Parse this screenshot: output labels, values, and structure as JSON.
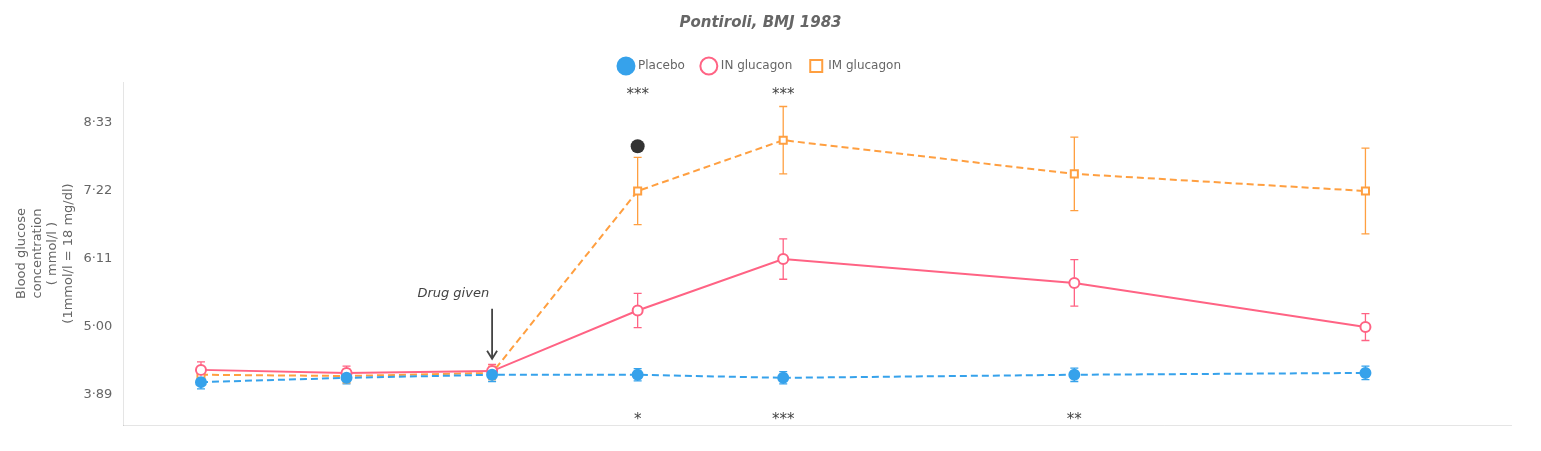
{
  "chart_data": {
    "type": "line",
    "title": "Pontiroli, BMJ 1983",
    "ylabel": [
      "Blood glucose",
      "concentration",
      "( mmol/l )",
      "(1mmol/l = 18 mg/dl)"
    ],
    "x": [
      -30,
      -15,
      0,
      15,
      30,
      60,
      90
    ],
    "series": [
      {
        "name": "Placebo",
        "values": [
          4.1,
          4.17,
          4.22,
          4.22,
          4.17,
          4.22,
          4.25
        ],
        "yerr": [
          0.11,
          0.1,
          0.11,
          0.1,
          0.1,
          0.11,
          0.11
        ],
        "marker": "filled_circle",
        "line_style": "dashed"
      },
      {
        "name": "IN glucagon",
        "values": [
          4.3,
          4.25,
          4.28,
          5.27,
          6.11,
          5.72,
          5.0
        ],
        "yerr": [
          0.13,
          0.11,
          0.11,
          0.28,
          0.33,
          0.38,
          0.22
        ],
        "marker": "open_circle",
        "line_style": "solid"
      },
      {
        "name": "IM glucagon",
        "values": [
          4.22,
          4.2,
          4.25,
          7.22,
          8.05,
          7.5,
          7.22
        ],
        "yerr": [
          0.13,
          0.11,
          0.11,
          0.55,
          0.55,
          0.6,
          0.7
        ],
        "marker": "open_square",
        "line_style": "dashed"
      }
    ],
    "xlim": [
      -38,
      105
    ],
    "ylim": [
      3.4,
      9.0
    ],
    "yticks": [
      {
        "value": 3.89,
        "label": "3·89"
      },
      {
        "value": 5.0,
        "label": "5·00"
      },
      {
        "value": 6.11,
        "label": "6·11"
      },
      {
        "value": 7.22,
        "label": "7·22"
      },
      {
        "value": 8.33,
        "label": "8·33"
      }
    ],
    "grid": false,
    "legend": "top",
    "tick_labels": "y",
    "annotations": [
      {
        "x": 15,
        "y": 7.95,
        "marker": "filled_circle"
      },
      {
        "text": "***",
        "x": 15,
        "y": 8.78
      },
      {
        "text": "***",
        "x": 30,
        "y": 8.78
      },
      {
        "text": "*",
        "x": 15,
        "y": 3.48
      },
      {
        "text": "***",
        "x": 30,
        "y": 3.48
      },
      {
        "text": "**",
        "x": 60,
        "y": 3.48
      },
      {
        "text": "Drug given",
        "x": -4,
        "y": 5.55,
        "arrow": {
          "x": 0,
          "y": [
            5.3,
            4.48
          ]
        }
      }
    ]
  }
}
